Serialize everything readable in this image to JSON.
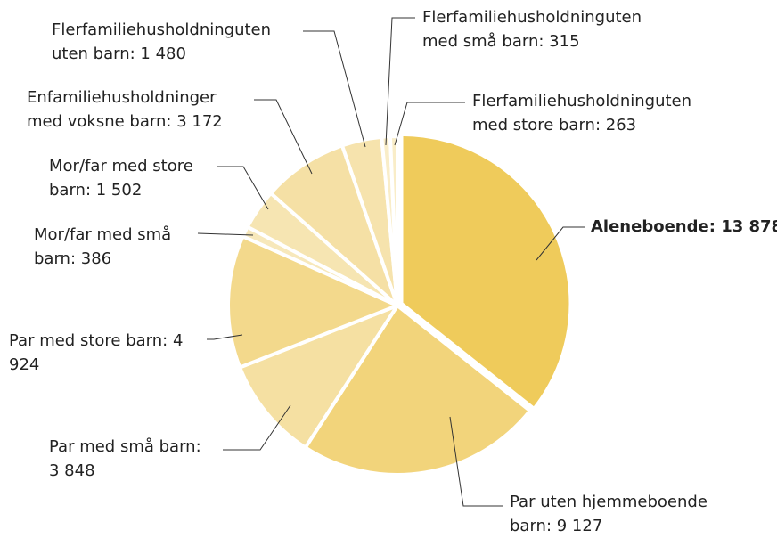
{
  "chart_data": {
    "type": "pie",
    "categories": [
      "Aleneboende:",
      "Par uten hjemmeboende barn:",
      "Par med små barn:",
      "Par med store barn:",
      "Mor/far med små barn:",
      "Mor/far med store barn:",
      "Enfamiliehusholdninger med voksne barn:",
      "Flerfamiliehusholdninguten uten barn:",
      "Flerfamiliehusholdninguten med små barn:",
      "Flerfamiliehusholdninguten med store barn:"
    ],
    "values": [
      13878,
      9127,
      3848,
      4924,
      386,
      1502,
      3172,
      1480,
      315,
      263
    ],
    "value_labels": [
      "13 878",
      "9 127",
      "3 848",
      "4 924",
      "386",
      "1 502",
      "3 172",
      "1 480",
      "315",
      "263"
    ],
    "colors": [
      "#efcb5b",
      "#f2d47b",
      "#f5e0a2",
      "#f3d98c",
      "#f7e8bb",
      "#f6e5b2",
      "#f5e0a5",
      "#f6e3ad",
      "#f9edc8",
      "#f9edc8"
    ],
    "highlight": 0
  }
}
